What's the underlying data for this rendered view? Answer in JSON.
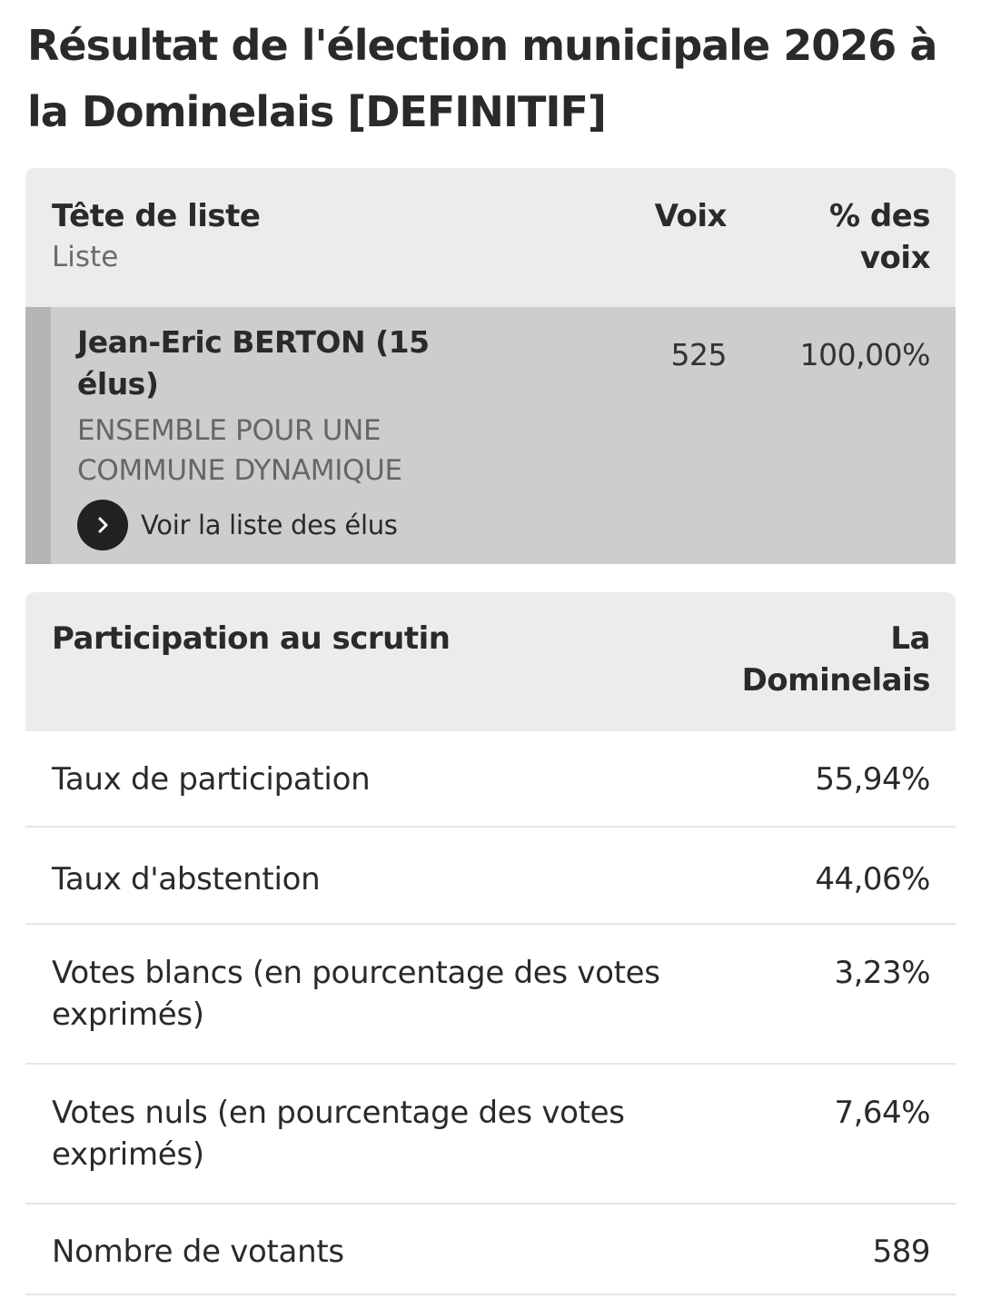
{
  "page": {
    "title": "Résultat de l'élection municipale 2026 à la Dominelais [DEFINITIF]"
  },
  "results": {
    "headers": {
      "candidate": "Tête de liste",
      "list": "Liste",
      "votes": "Voix",
      "percent": "% des voix"
    },
    "rows": [
      {
        "name": "Jean-Eric BERTON (15 élus)",
        "list": "ENSEMBLE POUR UNE COMMUNE DYNAMIQUE",
        "votes": "525",
        "percent": "100,00%",
        "see_list_label": "Voir la liste des élus"
      }
    ]
  },
  "participation": {
    "title": "Participation au scrutin",
    "commune": "La Dominelais",
    "rows": [
      {
        "label": "Taux de participation",
        "value": "55,94%"
      },
      {
        "label": "Taux d'abstention",
        "value": "44,06%"
      },
      {
        "label": "Votes blancs (en pourcentage des votes exprimés)",
        "value": "3,23%"
      },
      {
        "label": "Votes nuls (en pourcentage des votes exprimés)",
        "value": "7,64%"
      },
      {
        "label": "Nombre de votants",
        "value": "589"
      }
    ]
  },
  "icons": {
    "see_list": "chevron-right-icon"
  },
  "colors": {
    "header_bg": "#ececec",
    "highlight_row_bg": "#cdcdcd",
    "accent_bar": "#b5b5b5",
    "icon_circle": "#222222"
  }
}
